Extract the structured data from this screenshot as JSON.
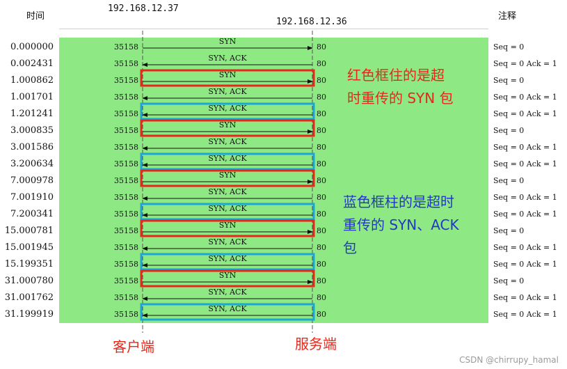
{
  "headers": {
    "time": "时间",
    "note": "注释",
    "client_ip": "192.168.12.37",
    "server_ip": "192.168.12.36"
  },
  "client_port": "35158",
  "server_port": "80",
  "rows": [
    {
      "time": "0.000000",
      "label": "SYN",
      "dir": "right",
      "note": "Seq = 0",
      "box": "none"
    },
    {
      "time": "0.002431",
      "label": "SYN, ACK",
      "dir": "left",
      "note": "Seq = 0 Ack = 1",
      "box": "none"
    },
    {
      "time": "1.000862",
      "label": "SYN",
      "dir": "right",
      "note": "Seq = 0",
      "box": "red"
    },
    {
      "time": "1.001701",
      "label": "SYN, ACK",
      "dir": "left",
      "note": "Seq = 0 Ack = 1",
      "box": "none"
    },
    {
      "time": "1.201241",
      "label": "SYN, ACK",
      "dir": "left",
      "note": "Seq = 0 Ack = 1",
      "box": "blue"
    },
    {
      "time": "3.000835",
      "label": "SYN",
      "dir": "right",
      "note": "Seq = 0",
      "box": "red"
    },
    {
      "time": "3.001586",
      "label": "SYN, ACK",
      "dir": "left",
      "note": "Seq = 0 Ack = 1",
      "box": "none"
    },
    {
      "time": "3.200634",
      "label": "SYN, ACK",
      "dir": "left",
      "note": "Seq = 0 Ack = 1",
      "box": "blue"
    },
    {
      "time": "7.000978",
      "label": "SYN",
      "dir": "right",
      "note": "Seq = 0",
      "box": "red"
    },
    {
      "time": "7.001910",
      "label": "SYN, ACK",
      "dir": "left",
      "note": "Seq = 0 Ack = 1",
      "box": "none"
    },
    {
      "time": "7.200341",
      "label": "SYN, ACK",
      "dir": "left",
      "note": "Seq = 0 Ack = 1",
      "box": "blue"
    },
    {
      "time": "15.000781",
      "label": "SYN",
      "dir": "right",
      "note": "Seq = 0",
      "box": "red"
    },
    {
      "time": "15.001945",
      "label": "SYN, ACK",
      "dir": "left",
      "note": "Seq = 0 Ack = 1",
      "box": "none"
    },
    {
      "time": "15.199351",
      "label": "SYN, ACK",
      "dir": "left",
      "note": "Seq = 0 Ack = 1",
      "box": "blue"
    },
    {
      "time": "31.000780",
      "label": "SYN",
      "dir": "right",
      "note": "Seq = 0",
      "box": "red"
    },
    {
      "time": "31.001762",
      "label": "SYN, ACK",
      "dir": "left",
      "note": "Seq = 0 Ack = 1",
      "box": "none"
    },
    {
      "time": "31.199919",
      "label": "SYN, ACK",
      "dir": "left",
      "note": "Seq = 0 Ack = 1",
      "box": "blue"
    }
  ],
  "callouts": {
    "red_lines": [
      "红色框住的是超",
      "时重传的 SYN 包"
    ],
    "blue_lines": [
      "蓝色框柱的是超时",
      "重传的 SYN、ACK",
      "包"
    ]
  },
  "footer": {
    "client": "客户端",
    "server": "服务端"
  },
  "watermark": "CSDN @chirrupy_hamal",
  "colors": {
    "band": "#8ee884",
    "red_box": "#e8271b",
    "blue_box": "#1aa6d6",
    "red_text": "#e8271b",
    "blue_text": "#2238c4"
  }
}
